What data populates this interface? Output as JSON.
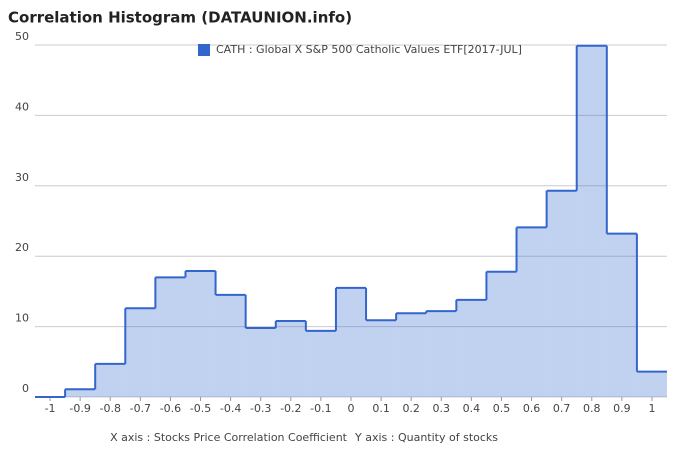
{
  "chart_data": {
    "type": "histogram",
    "title": "Correlation Histogram (DATAUNION.info)",
    "xlabel": "X axis : Stocks Price Correlation Coefficient",
    "ylabel": "Y axis : Quantity of stocks",
    "bins": [
      -1.05,
      -0.95,
      -0.85,
      -0.75,
      -0.65,
      -0.55,
      -0.45,
      -0.35,
      -0.25,
      -0.15,
      -0.05,
      0.05,
      0.15,
      0.25,
      0.35,
      0.45,
      0.55,
      0.65,
      0.75,
      0.85,
      0.95,
      1.05
    ],
    "series": [
      {
        "name": "CATH : Global X S&P 500 Catholic Values ETF[2017-JUL]",
        "color": "#3366cc",
        "values": [
          0,
          1.1,
          4.7,
          12.6,
          17,
          17.9,
          14.5,
          9.8,
          10.8,
          9.4,
          15.5,
          10.9,
          11.9,
          12.2,
          13.8,
          17.8,
          24.1,
          29.3,
          49.9,
          23.2,
          3.6
        ]
      }
    ],
    "xlim": [
      -1.05,
      1.05
    ],
    "xticks": [
      -1,
      -0.9,
      -0.8,
      -0.7,
      -0.6,
      -0.5,
      -0.4,
      -0.3,
      -0.2,
      -0.1,
      0,
      0.1,
      0.2,
      0.3,
      0.4,
      0.5,
      0.6,
      0.7,
      0.8,
      0.9,
      1
    ],
    "ylim": [
      0,
      50
    ],
    "yticks": [
      0,
      10,
      20,
      30,
      40,
      50
    ],
    "grid": true
  }
}
